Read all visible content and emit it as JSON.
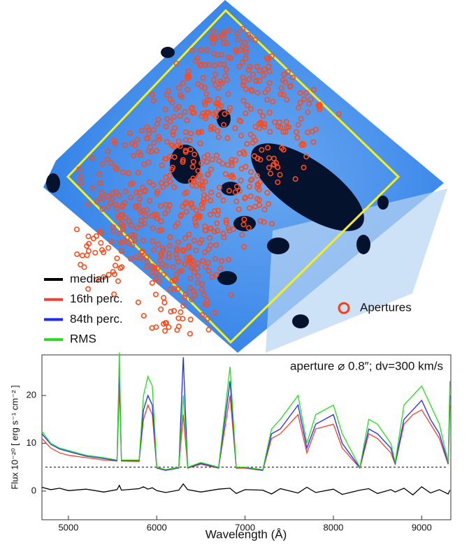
{
  "chart_data": {
    "type": "line",
    "image_legend": "Apertures",
    "annotation": "aperture ⌀ 0.8″;  dv=300 km/s",
    "x_label": "Wavelength (Å)",
    "y_label": "Flux 10⁻²⁰ [ erg s⁻¹ cm⁻² ]",
    "x": [
      4700,
      4800,
      4900,
      5000,
      5200,
      5400,
      5550,
      5577,
      5600,
      5800,
      5850,
      5900,
      5950,
      6000,
      6100,
      6250,
      6300,
      6350,
      6500,
      6700,
      6830,
      6900,
      7000,
      7200,
      7300,
      7400,
      7600,
      7700,
      7800,
      8000,
      8100,
      8300,
      8400,
      8500,
      8650,
      8700,
      8800,
      8900,
      9000,
      9100,
      9200,
      9300,
      9320
    ],
    "series": [
      {
        "name": "16th perc.",
        "color": "#ff3b2f",
        "values": [
          11,
          9,
          8,
          7.5,
          7,
          6.5,
          6.3,
          22,
          6.3,
          6.2,
          15,
          18,
          16,
          4.8,
          4.3,
          4.8,
          16,
          4.8,
          5.6,
          4.8,
          20,
          4.8,
          4.8,
          4.3,
          11,
          12,
          16,
          8,
          13,
          14,
          9,
          4.8,
          12,
          11,
          8,
          5.6,
          14,
          16,
          17,
          14,
          11,
          5.6,
          18
        ]
      },
      {
        "name": "84th perc.",
        "color": "#1d2bff",
        "values": [
          12,
          9.8,
          8.8,
          8.3,
          7.3,
          6.8,
          6.4,
          26,
          6.4,
          6.4,
          17,
          20,
          18,
          4.9,
          4.4,
          4.9,
          28,
          4.9,
          5.8,
          4.9,
          23,
          4.9,
          4.9,
          4.4,
          12,
          13,
          18,
          9,
          14,
          16,
          10,
          4.9,
          13,
          12,
          9,
          5.8,
          15,
          17,
          19,
          15,
          12,
          5.8,
          20
        ]
      },
      {
        "name": "RMS",
        "color": "#22e01b",
        "values": [
          12.5,
          10,
          9,
          8.5,
          7.5,
          7,
          6.5,
          29,
          6.5,
          6.5,
          20,
          24,
          22,
          5,
          4.5,
          5,
          20,
          5,
          6,
          5,
          26,
          5,
          5,
          4.5,
          13,
          15,
          20,
          10,
          16,
          18,
          12,
          5,
          15,
          14,
          10,
          6,
          18,
          20,
          22,
          18,
          14,
          6,
          23
        ]
      },
      {
        "name": "median",
        "color": "#000000",
        "values": [
          0.8,
          0.3,
          0.6,
          0.1,
          0.4,
          -0.2,
          0.3,
          1.2,
          0.2,
          0.5,
          0.9,
          0.4,
          0.7,
          0.1,
          -0.3,
          0.2,
          1.5,
          0.3,
          -0.2,
          0.4,
          0.6,
          -0.5,
          0.3,
          0.2,
          -0.6,
          0.5,
          -0.4,
          0.8,
          -0.3,
          0.4,
          -0.7,
          0.2,
          0.5,
          -0.5,
          0.3,
          -0.2,
          0.6,
          -0.8,
          0.9,
          -0.4,
          0.3,
          -0.6,
          0.2
        ]
      }
    ],
    "hline": 5,
    "xlim": [
      4700,
      9330
    ],
    "xticks": [
      5000,
      6000,
      7000,
      8000,
      9000
    ],
    "ylim": [
      -6,
      28.5
    ],
    "yticks": [
      0,
      10,
      20
    ]
  }
}
